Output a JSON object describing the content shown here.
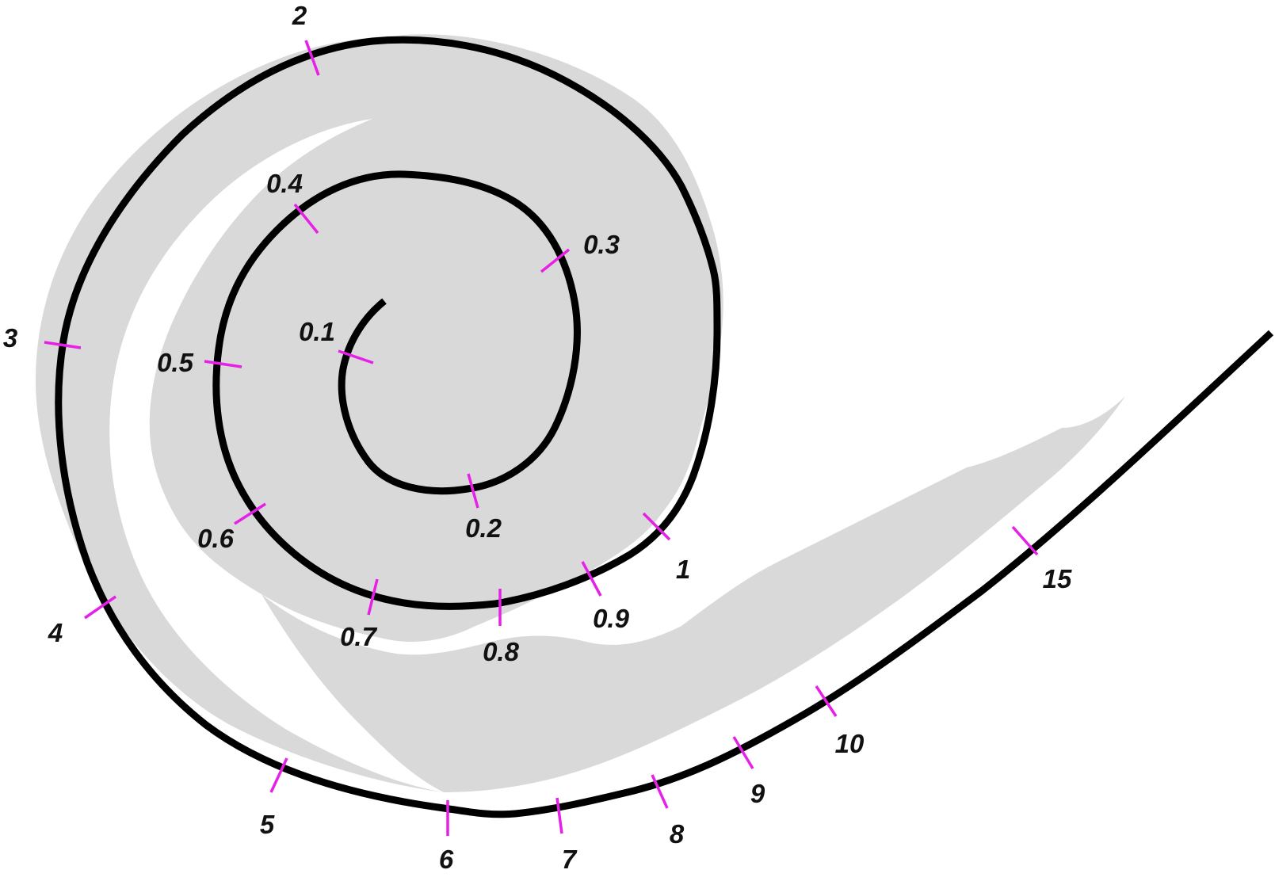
{
  "colors": {
    "background": "#ffffff",
    "band": "#d9d9d9",
    "spiral": "#000000",
    "tick": "#e620e6",
    "label": "#111111"
  },
  "labels": {
    "t01": "0.1",
    "t02": "0.2",
    "t03": "0.3",
    "t04": "0.4",
    "t05": "0.5",
    "t06": "0.6",
    "t07": "0.7",
    "t08": "0.8",
    "t09": "0.9",
    "t1": "1",
    "t2": "2",
    "t3": "3",
    "t4": "4",
    "t5": "5",
    "t6": "6",
    "t7": "7",
    "t8": "8",
    "t9": "9",
    "t10": "10",
    "t15": "15"
  }
}
